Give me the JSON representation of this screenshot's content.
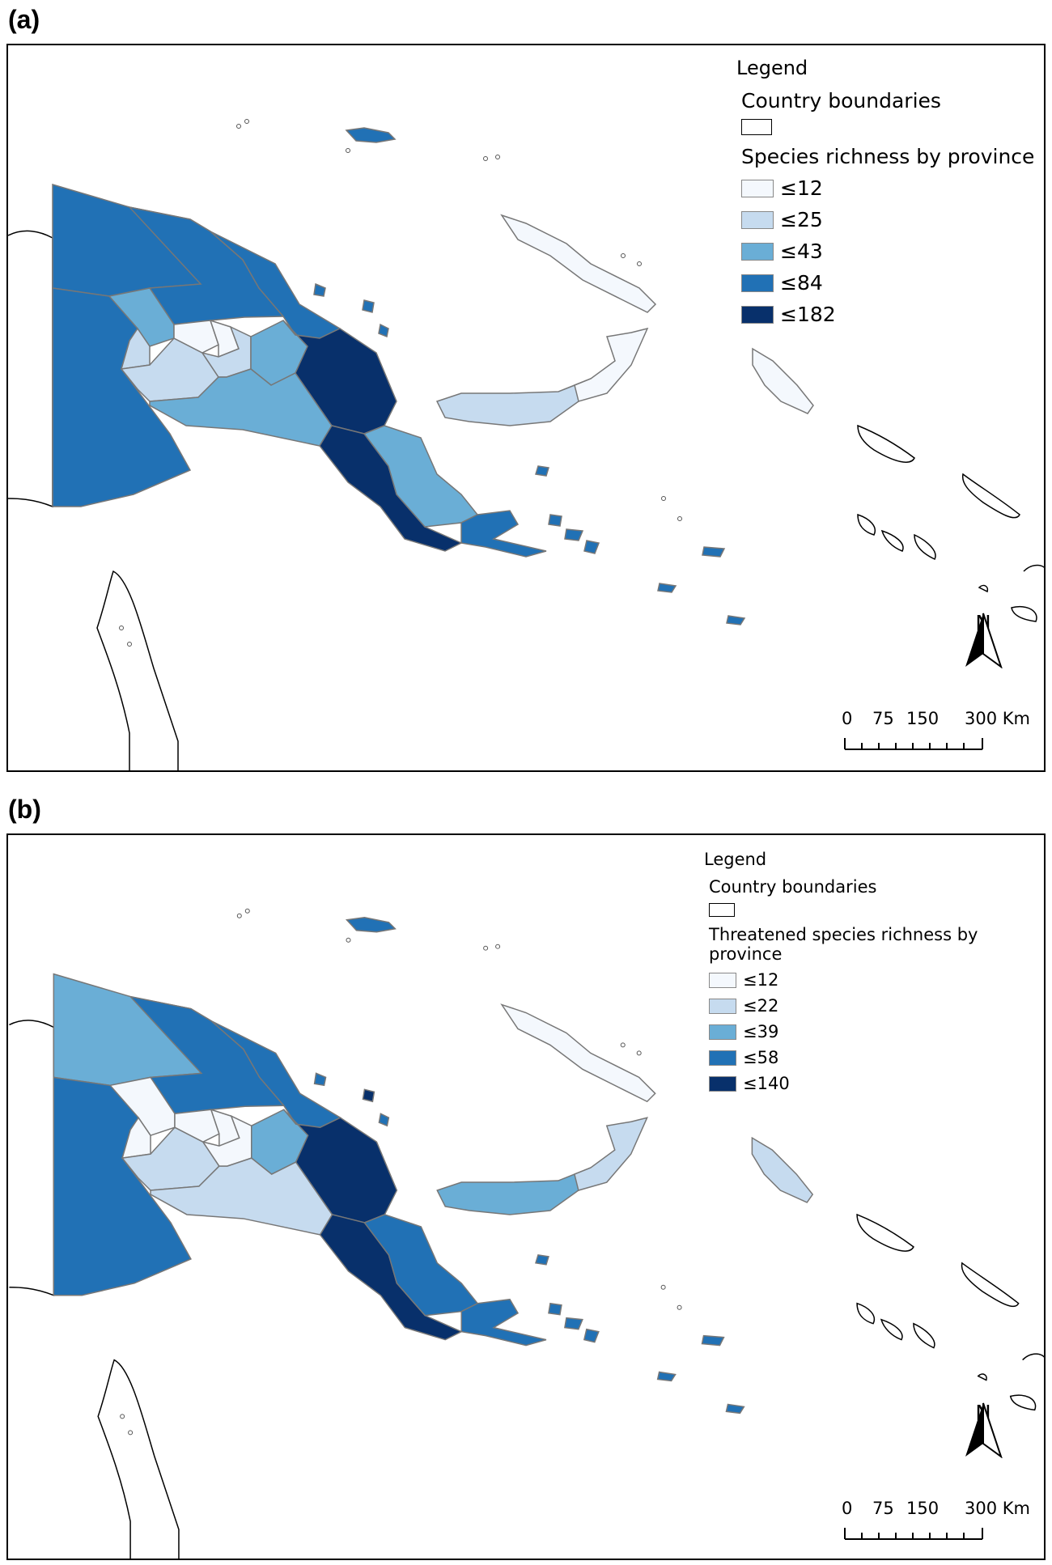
{
  "panels": [
    {
      "label": "(a)",
      "legend": {
        "title": "Legend",
        "boundary_label": "Country boundaries",
        "classes_title": "Species richness by province",
        "classes": [
          {
            "label": "≤12",
            "color": "#f4f8fd"
          },
          {
            "label": "≤25",
            "color": "#c6dbef"
          },
          {
            "label": "≤43",
            "color": "#6aaed6"
          },
          {
            "label": "≤84",
            "color": "#2171b5"
          },
          {
            "label": "≤182",
            "color": "#08306b"
          }
        ]
      },
      "north_label": "N",
      "scale_labels": [
        "0",
        "75",
        "150",
        "300 Km"
      ],
      "province_class": {
        "west-sepik": 3,
        "western": 3,
        "east-sepik": 3,
        "madang": 3,
        "enga": 2,
        "hela": 1,
        "southern-highlands": 1,
        "western-highlands": 0,
        "jiwaka": 0,
        "simbu": 1,
        "eastern-highlands": 2,
        "gulf": 2,
        "morobe": 4,
        "central": 4,
        "oro": 2,
        "milne-bay": 3,
        "west-new-britain": 1,
        "east-new-britain": 0,
        "new-ireland": 0,
        "bougainville": 0,
        "manus": 3,
        "karkar": 3,
        "long-island": 3,
        "umboi": 3,
        "trobriand": 3,
        "goodenough": 3,
        "fergusson": 3,
        "normanby": 3,
        "misima": 3,
        "rossel": 3,
        "woodlark": 3
      }
    },
    {
      "label": "(b)",
      "legend": {
        "title": "Legend",
        "boundary_label": "Country boundaries",
        "classes_title": "Threatened species richness by province",
        "classes": [
          {
            "label": "≤12",
            "color": "#f4f8fd"
          },
          {
            "label": "≤22",
            "color": "#c6dbef"
          },
          {
            "label": "≤39",
            "color": "#6aaed6"
          },
          {
            "label": "≤58",
            "color": "#2171b5"
          },
          {
            "label": "≤140",
            "color": "#08306b"
          }
        ]
      },
      "north_label": "N",
      "scale_labels": [
        "0",
        "75",
        "150",
        "300 Km"
      ],
      "province_class": {
        "west-sepik": 2,
        "western": 3,
        "east-sepik": 3,
        "madang": 3,
        "enga": 0,
        "hela": 0,
        "southern-highlands": 1,
        "western-highlands": 0,
        "jiwaka": 0,
        "simbu": 0,
        "eastern-highlands": 2,
        "gulf": 1,
        "morobe": 4,
        "central": 4,
        "oro": 3,
        "milne-bay": 3,
        "west-new-britain": 2,
        "east-new-britain": 1,
        "new-ireland": 0,
        "bougainville": 1,
        "manus": 3,
        "karkar": 3,
        "long-island": 4,
        "umboi": 3,
        "trobriand": 3,
        "goodenough": 3,
        "fergusson": 3,
        "normanby": 3,
        "misima": 3,
        "rossel": 3,
        "woodlark": 3
      }
    }
  ]
}
